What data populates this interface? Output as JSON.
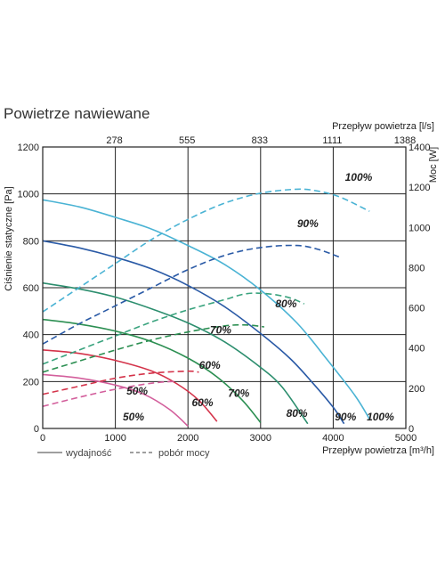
{
  "title": "Powietrze nawiewane",
  "chart_data": {
    "type": "line",
    "title": "Powietrze nawiewane",
    "xlabel": "Przepływ powietrza [m³/h]",
    "x2label": "Przepływ powietrza [l/s]",
    "ylabel": "Ciśnienie statyczne [Pa]",
    "y2label": "Moc [W]",
    "xlim": [
      0,
      5000
    ],
    "ylim": [
      0,
      1200
    ],
    "y2lim": [
      0,
      1400
    ],
    "x_ticks": [
      0,
      1000,
      2000,
      3000,
      4000,
      5000
    ],
    "x2_ticks": [
      {
        "at": 1000,
        "label": "278"
      },
      {
        "at": 2000,
        "label": "555"
      },
      {
        "at": 3000,
        "label": "833"
      },
      {
        "at": 4000,
        "label": "1111"
      },
      {
        "at": 5000,
        "label": "1388"
      }
    ],
    "y_ticks": [
      0,
      200,
      400,
      600,
      800,
      1000,
      1200
    ],
    "y2_ticks": [
      0,
      200,
      400,
      600,
      800,
      1000,
      1200,
      1400
    ],
    "grid": true,
    "legend": {
      "position": "bottom-left",
      "entries": [
        {
          "label": "wydajność",
          "style": "solid"
        },
        {
          "label": "pobór mocy",
          "style": "dashed"
        }
      ]
    },
    "series": [
      {
        "name": "100%",
        "kind": "wydajność",
        "axis": "y",
        "color": "#4ab3d4",
        "x": [
          0,
          500,
          1000,
          1500,
          2000,
          2500,
          3000,
          3500,
          3900,
          4300,
          4500
        ],
        "y": [
          975,
          945,
          900,
          850,
          780,
          700,
          590,
          450,
          300,
          140,
          40
        ]
      },
      {
        "name": "90%",
        "kind": "wydajność",
        "axis": "y",
        "color": "#2a5aa6",
        "x": [
          0,
          500,
          1000,
          1500,
          2000,
          2500,
          3000,
          3400,
          3700,
          4000,
          4150
        ],
        "y": [
          800,
          770,
          730,
          680,
          610,
          520,
          405,
          300,
          200,
          90,
          20
        ]
      },
      {
        "name": "80%",
        "kind": "wydajność",
        "axis": "y",
        "color": "#2c8e6e",
        "x": [
          0,
          500,
          1000,
          1500,
          2000,
          2500,
          3000,
          3300,
          3650
        ],
        "y": [
          620,
          595,
          560,
          510,
          450,
          370,
          260,
          175,
          20
        ]
      },
      {
        "name": "70%",
        "kind": "wydajność",
        "axis": "y",
        "color": "#2c8f52",
        "x": [
          0,
          500,
          1000,
          1500,
          2000,
          2400,
          2750,
          3000
        ],
        "y": [
          465,
          445,
          415,
          370,
          300,
          220,
          120,
          25
        ]
      },
      {
        "name": "60%",
        "kind": "wydajność",
        "axis": "y",
        "color": "#d4334a",
        "x": [
          0,
          500,
          1000,
          1500,
          1850,
          2150,
          2400
        ],
        "y": [
          335,
          320,
          290,
          245,
          190,
          120,
          30
        ]
      },
      {
        "name": "50%",
        "kind": "wydajność",
        "axis": "y",
        "color": "#d35f9c",
        "x": [
          0,
          500,
          1000,
          1400,
          1750,
          2000
        ],
        "y": [
          230,
          215,
          185,
          145,
          80,
          10
        ]
      },
      {
        "name": "100%",
        "kind": "pobór mocy",
        "axis": "y2",
        "color": "#4ab3d4",
        "x": [
          0,
          500,
          1000,
          1500,
          2000,
          2500,
          3000,
          3500,
          3800,
          4100,
          4500
        ],
        "y": [
          580,
          700,
          820,
          940,
          1040,
          1120,
          1170,
          1190,
          1180,
          1150,
          1080
        ]
      },
      {
        "name": "90%",
        "kind": "pobór mocy",
        "axis": "y2",
        "color": "#2a5aa6",
        "x": [
          0,
          500,
          1000,
          1500,
          2000,
          2500,
          3000,
          3500,
          3800,
          4100
        ],
        "y": [
          420,
          520,
          610,
          700,
          790,
          860,
          900,
          910,
          890,
          850
        ]
      },
      {
        "name": "80%",
        "kind": "pobór mocy",
        "axis": "y2",
        "color": "#3aa37e",
        "x": [
          0,
          500,
          1000,
          1500,
          2000,
          2500,
          2800,
          3100,
          3400,
          3600
        ],
        "y": [
          320,
          390,
          460,
          530,
          590,
          640,
          670,
          670,
          650,
          620
        ]
      },
      {
        "name": "70%",
        "kind": "pobór mocy",
        "axis": "y2",
        "color": "#2c8f52",
        "x": [
          0,
          500,
          1000,
          1500,
          2000,
          2500,
          2800,
          3050
        ],
        "y": [
          280,
          335,
          390,
          440,
          480,
          510,
          515,
          505
        ]
      },
      {
        "name": "60%",
        "kind": "pobór mocy",
        "axis": "y2",
        "color": "#d4334a",
        "x": [
          0,
          500,
          1000,
          1500,
          2000,
          2150
        ],
        "y": [
          170,
          210,
          250,
          275,
          285,
          280
        ]
      },
      {
        "name": "50%",
        "kind": "pobór mocy",
        "axis": "y2",
        "color": "#d35f9c",
        "x": [
          0,
          500,
          1000,
          1500,
          1850
        ],
        "y": [
          110,
          155,
          195,
          225,
          235
        ]
      }
    ],
    "curve_labels": [
      {
        "text": "100%",
        "x": 4350,
        "y_right": 1250
      },
      {
        "text": "90%",
        "x": 3650,
        "y_right": 1020
      },
      {
        "text": "80%",
        "x": 3350,
        "y_right": 620
      },
      {
        "text": "70%",
        "x": 2450,
        "y_right": 490
      },
      {
        "text": "60%",
        "x": 2300,
        "y_right": 315
      },
      {
        "text": "50%",
        "x": 1300,
        "y_right": 185
      },
      {
        "text": "50%",
        "x": 1250,
        "y": 50
      },
      {
        "text": "60%",
        "x": 2200,
        "y": 110
      },
      {
        "text": "70%",
        "x": 2700,
        "y": 150
      },
      {
        "text": "80%",
        "x": 3500,
        "y": 65
      },
      {
        "text": "90%",
        "x": 4170,
        "y": 50
      },
      {
        "text": "100%",
        "x": 4650,
        "y": 50
      }
    ]
  }
}
